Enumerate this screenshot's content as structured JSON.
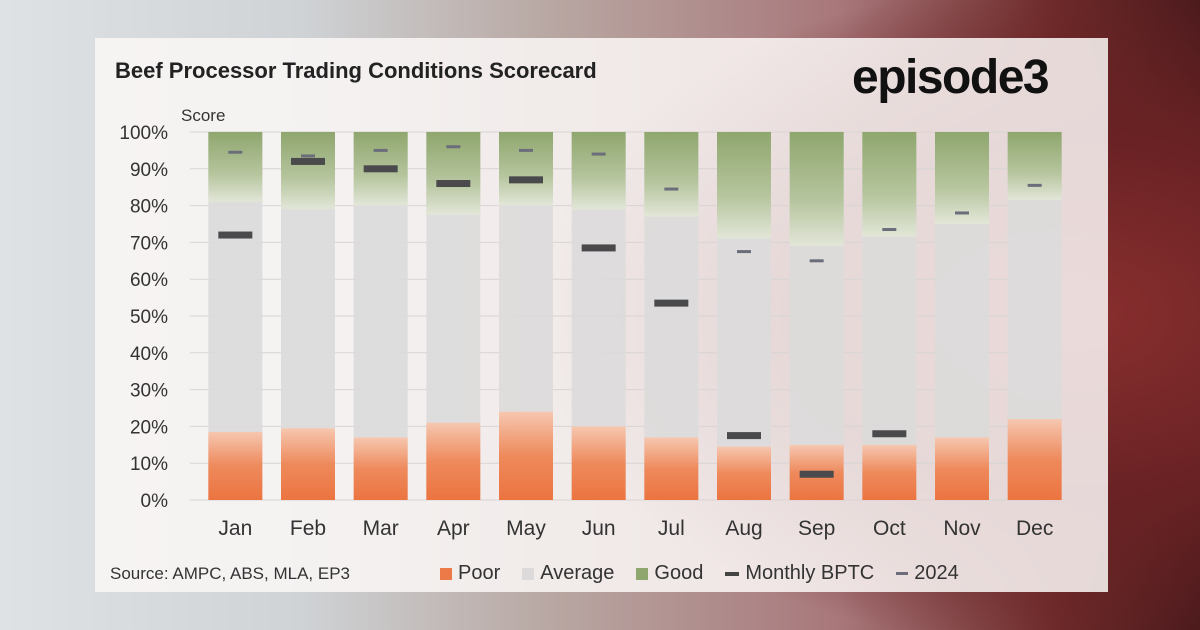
{
  "title": "Beef Processor Trading Conditions Scorecard",
  "logo": "episode3",
  "source": "Source: AMPC, ABS, MLA, EP3",
  "colors": {
    "poor": "#ec7a48",
    "average": "#dcdada",
    "good": "#8fa66e",
    "monthly": "#4a4a4c",
    "y2024": "#6b6e7a"
  },
  "legend": [
    {
      "label": "Poor"
    },
    {
      "label": "Average"
    },
    {
      "label": "Good"
    },
    {
      "label": "Monthly BPTC"
    },
    {
      "label": "2024"
    }
  ],
  "chart_data": {
    "type": "bar",
    "title": "Beef Processor Trading Conditions Scorecard",
    "ylabel": "Score",
    "ylim": [
      0,
      100
    ],
    "yticks": [
      "0%",
      "10%",
      "20%",
      "30%",
      "40%",
      "50%",
      "60%",
      "70%",
      "80%",
      "90%",
      "100%"
    ],
    "categories": [
      "Jan",
      "Feb",
      "Mar",
      "Apr",
      "May",
      "Jun",
      "Jul",
      "Aug",
      "Sep",
      "Oct",
      "Nov",
      "Dec"
    ],
    "series": [
      {
        "name": "Poor",
        "values": [
          18.5,
          19.5,
          17,
          21,
          24,
          20,
          17,
          14.5,
          15,
          15,
          17,
          22
        ]
      },
      {
        "name": "Good",
        "values": [
          19,
          21,
          20,
          22.5,
          20,
          21,
          23,
          29,
          31,
          28.5,
          25,
          18.5
        ]
      },
      {
        "name": "Monthly BPTC",
        "values": [
          72,
          92,
          90,
          86,
          87,
          68.5,
          53.5,
          17.5,
          7,
          18,
          null,
          null
        ]
      },
      {
        "name": "2024",
        "values": [
          94.5,
          93.5,
          95,
          96,
          95,
          94,
          84.5,
          67.5,
          65,
          73.5,
          78,
          85.5
        ]
      }
    ]
  }
}
